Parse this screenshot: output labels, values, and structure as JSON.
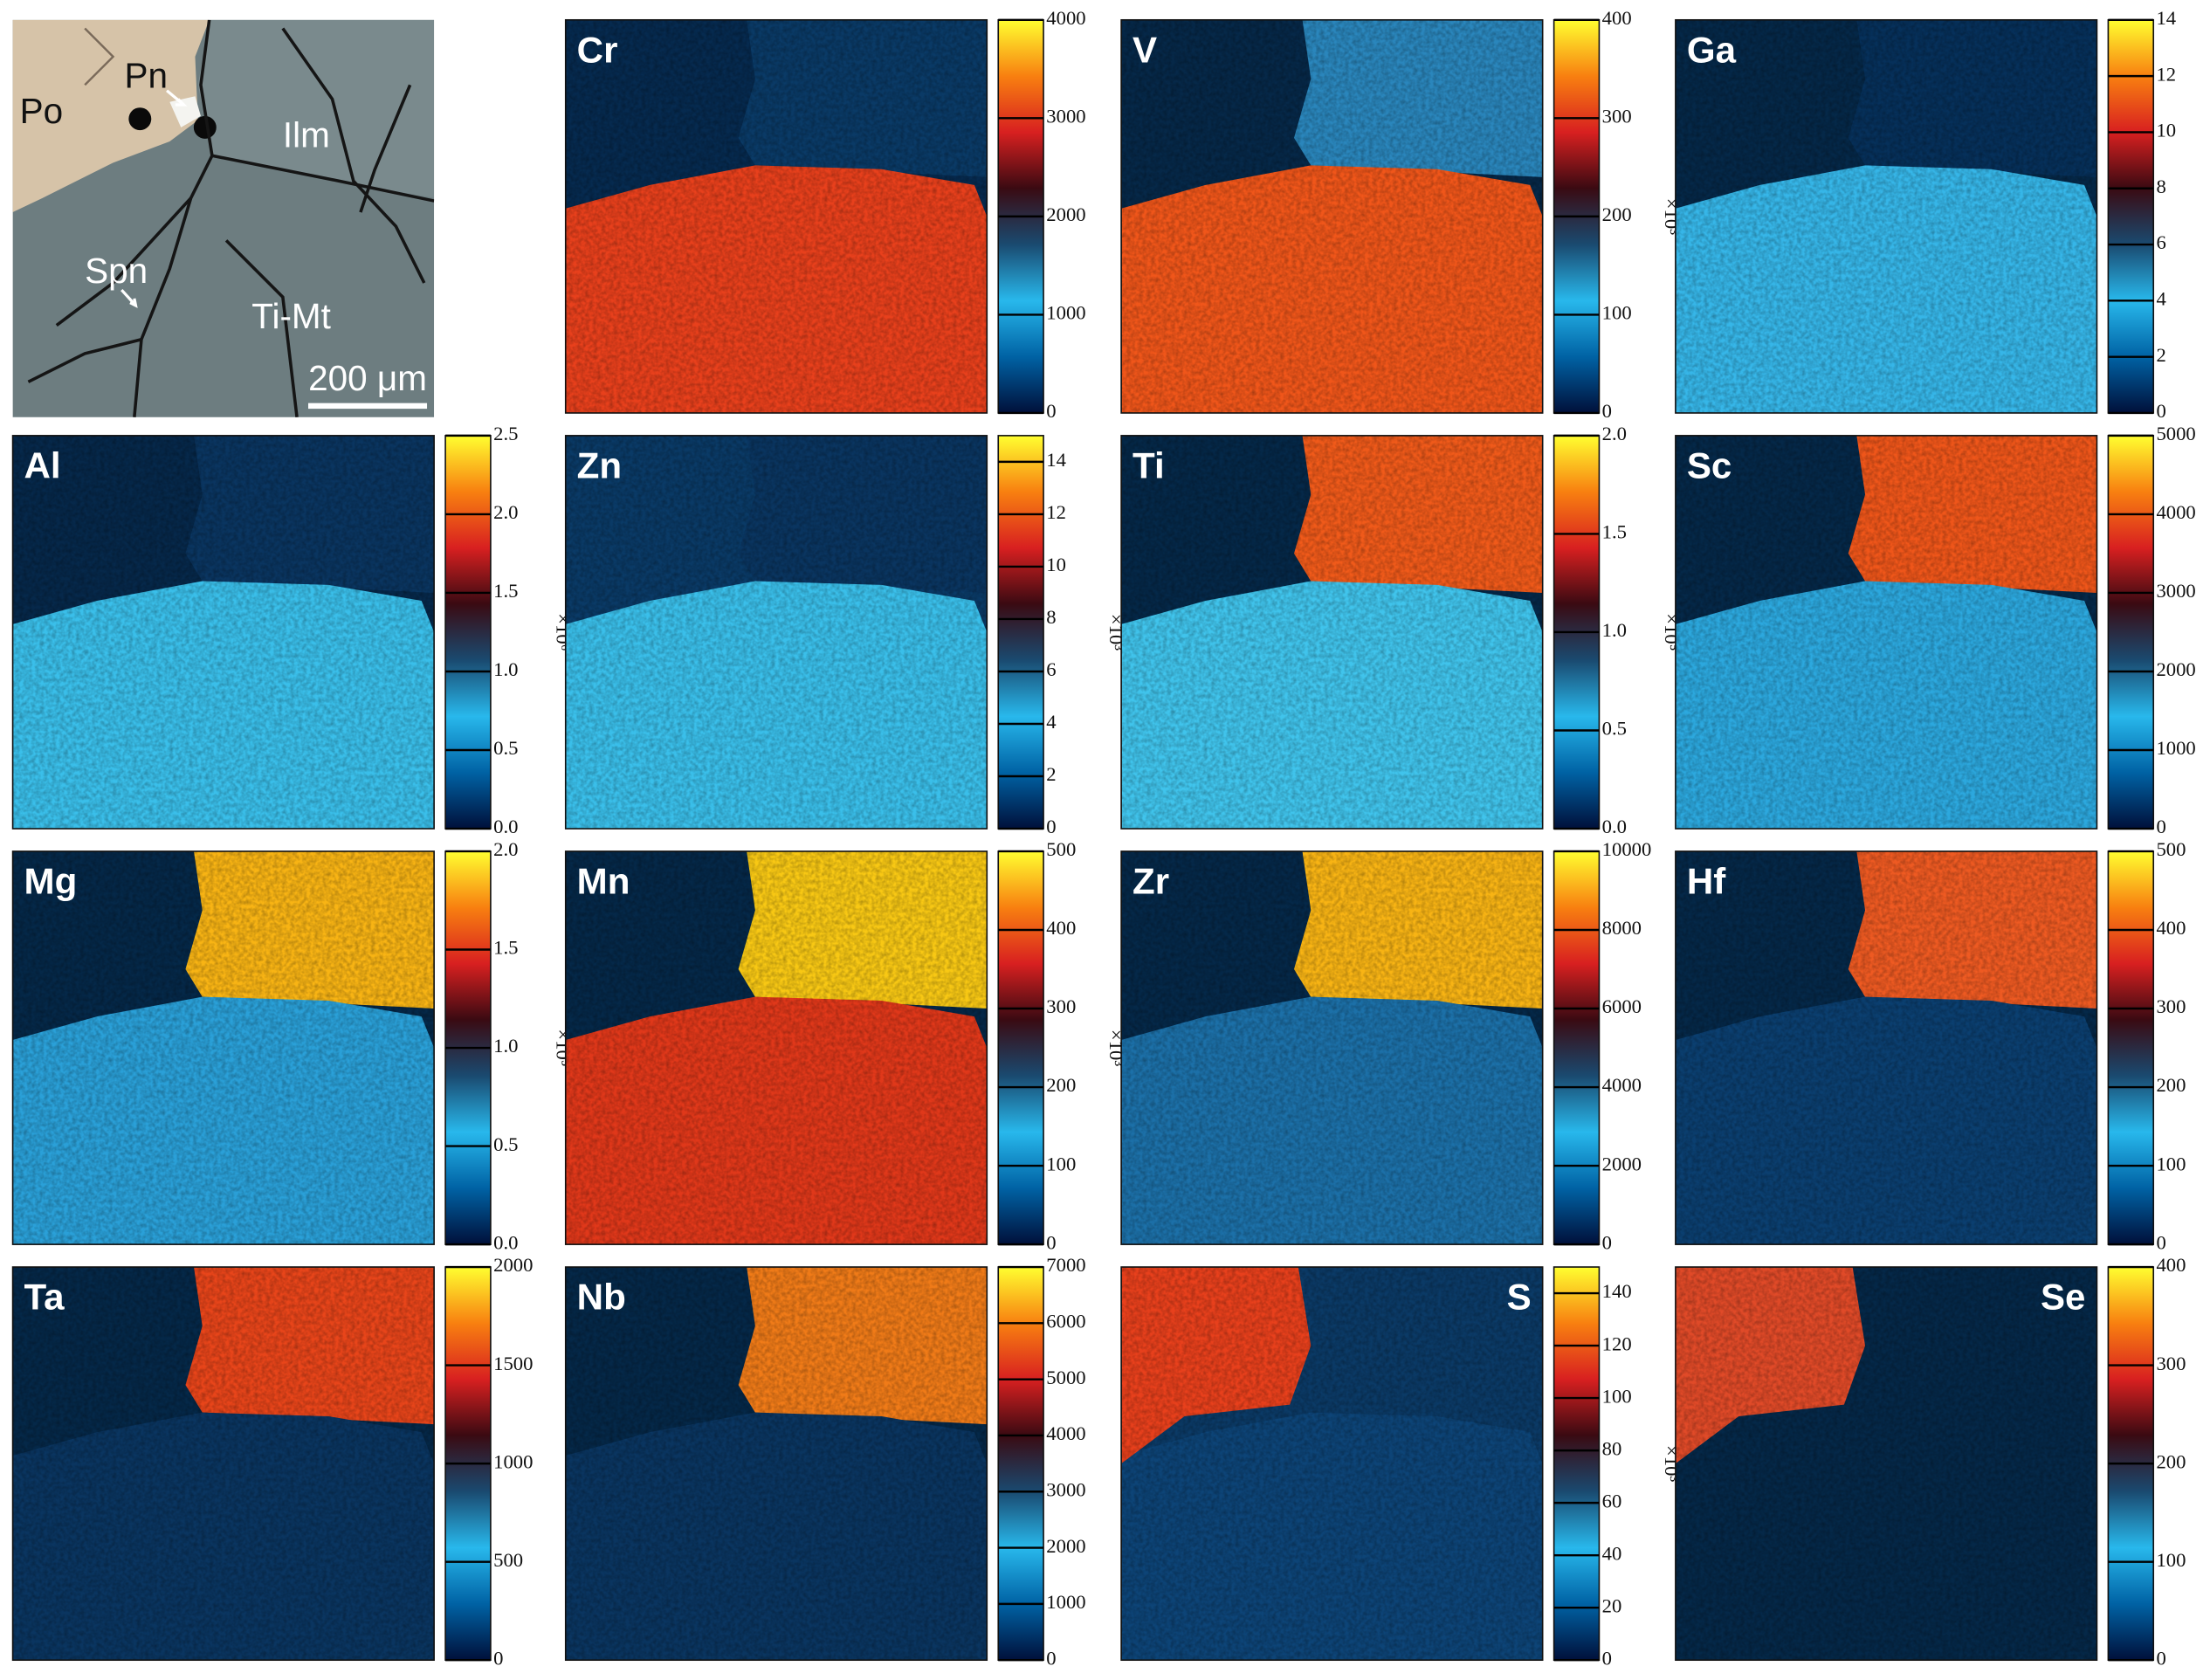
{
  "micrograph": {
    "labels": [
      "Po",
      "Pn",
      "Ilm",
      "Spn",
      "Ti-Mt"
    ],
    "scale_bar": "200 μm"
  },
  "colorscale": [
    "#00103a",
    "#0062a4",
    "#28b8ec",
    "#1a4a70",
    "#3a0a12",
    "#d82020",
    "#f88010",
    "#ffff30"
  ],
  "chart_data": [
    {
      "type": "heatmap",
      "title": "Cr",
      "ylim": [
        0,
        4000
      ],
      "yticks": [
        0,
        1000,
        2000,
        3000,
        4000
      ]
    },
    {
      "type": "heatmap",
      "title": "V",
      "ylim": [
        0,
        400
      ],
      "yticks": [
        0,
        100,
        200,
        300,
        400
      ],
      "scale_label": "×10³"
    },
    {
      "type": "heatmap",
      "title": "Ga",
      "ylim": [
        0,
        14
      ],
      "yticks": [
        0,
        2,
        4,
        6,
        8,
        10,
        12,
        14
      ],
      "scale_label": "×10³"
    },
    {
      "type": "heatmap",
      "title": "Al",
      "ylim": [
        0,
        2.5
      ],
      "yticks": [
        {
          "value": 0,
          "label": "0.0"
        },
        0.5,
        {
          "value": 1,
          "label": "1.0"
        },
        1.5,
        {
          "value": 2,
          "label": "2.0"
        },
        2.5
      ],
      "scale_label": "×10⁶"
    },
    {
      "type": "heatmap",
      "title": "Zn",
      "ylim": [
        0,
        15
      ],
      "yticks": [
        0,
        2,
        4,
        6,
        8,
        10,
        12,
        14
      ],
      "scale_label": "×10³"
    },
    {
      "type": "heatmap",
      "title": "Ti",
      "ylim": [
        0,
        2
      ],
      "yticks": [
        {
          "value": 0,
          "label": "0.0"
        },
        0.5,
        {
          "value": 1,
          "label": "1.0"
        },
        1.5,
        {
          "value": 2,
          "label": "2.0"
        }
      ],
      "scale_label": "×10⁵"
    },
    {
      "type": "heatmap",
      "title": "Sc",
      "ylim": [
        0,
        5000
      ],
      "yticks": [
        0,
        1000,
        2000,
        3000,
        4000,
        5000
      ]
    },
    {
      "type": "heatmap",
      "title": "Mg",
      "ylim": [
        0,
        2
      ],
      "yticks": [
        {
          "value": 0,
          "label": "0.0"
        },
        0.5,
        {
          "value": 1,
          "label": "1.0"
        },
        1.5,
        {
          "value": 2,
          "label": "2.0"
        }
      ],
      "scale_label": "×10⁵"
    },
    {
      "type": "heatmap",
      "title": "Mn",
      "ylim": [
        0,
        500
      ],
      "yticks": [
        0,
        100,
        200,
        300,
        400,
        500
      ],
      "scale_label": "×10³"
    },
    {
      "type": "heatmap",
      "title": "Zr",
      "ylim": [
        0,
        10000
      ],
      "yticks": [
        0,
        2000,
        4000,
        6000,
        8000,
        10000
      ]
    },
    {
      "type": "heatmap",
      "title": "Hf",
      "ylim": [
        0,
        500
      ],
      "yticks": [
        0,
        100,
        200,
        300,
        400,
        500
      ]
    },
    {
      "type": "heatmap",
      "title": "Ta",
      "ylim": [
        0,
        2000
      ],
      "yticks": [
        0,
        500,
        1000,
        1500,
        2000
      ]
    },
    {
      "type": "heatmap",
      "title": "Nb",
      "ylim": [
        0,
        7000
      ],
      "yticks": [
        0,
        1000,
        2000,
        3000,
        4000,
        5000,
        6000,
        7000
      ]
    },
    {
      "type": "heatmap",
      "title": "S",
      "ylim": [
        0,
        150
      ],
      "yticks": [
        0,
        20,
        40,
        60,
        80,
        100,
        120,
        140
      ],
      "scale_label": "×10³"
    },
    {
      "type": "heatmap",
      "title": "Se",
      "ylim": [
        0,
        400
      ],
      "yticks": [
        0,
        100,
        200,
        300,
        400
      ]
    }
  ]
}
